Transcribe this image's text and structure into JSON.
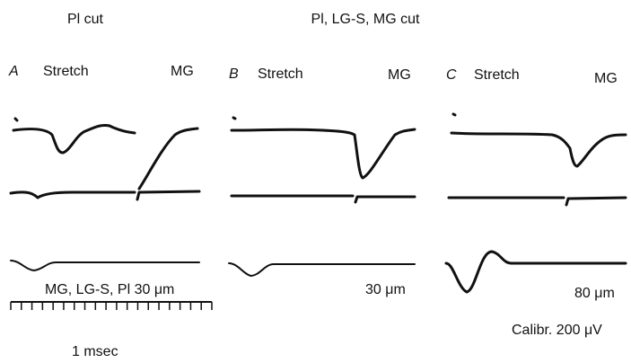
{
  "header": {
    "left": "Pl cut",
    "right": "Pl, LG-S, MG cut"
  },
  "panels": [
    {
      "letter": "A",
      "left_label": "Stretch",
      "right_label": "MG",
      "caption": "MG, LG-S, Pl 30 μm"
    },
    {
      "letter": "B",
      "left_label": "Stretch",
      "right_label": "MG",
      "caption": "30 μm"
    },
    {
      "letter": "C",
      "left_label": "Stretch",
      "right_label": "MG",
      "caption": "80 μm"
    }
  ],
  "calibration": "Calibr. 200 μV",
  "time_scale": "1 msec"
}
